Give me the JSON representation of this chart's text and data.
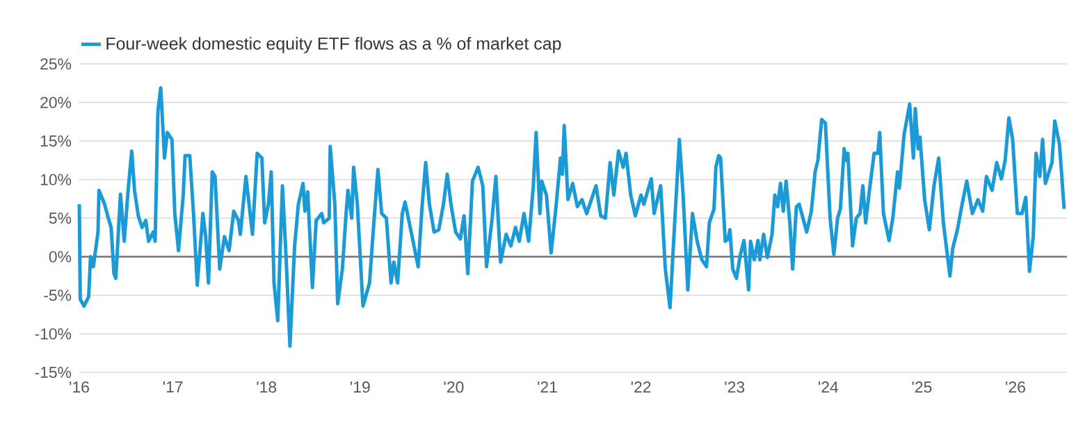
{
  "chart_data": {
    "type": "line",
    "x": [
      2016.0,
      2016.01,
      2016.05,
      2016.1,
      2016.12,
      2016.15,
      2016.2,
      2016.21,
      2016.27,
      2016.31,
      2016.34,
      2016.37,
      2016.39,
      2016.42,
      2016.44,
      2016.48,
      2016.52,
      2016.56,
      2016.59,
      2016.63,
      2016.67,
      2016.71,
      2016.74,
      2016.79,
      2016.81,
      2016.84,
      2016.87,
      2016.91,
      2016.94,
      2016.99,
      2017.02,
      2017.06,
      2017.11,
      2017.13,
      2017.18,
      2017.22,
      2017.26,
      2017.32,
      2017.35,
      2017.38,
      2017.42,
      2017.45,
      2017.5,
      2017.55,
      2017.6,
      2017.65,
      2017.7,
      2017.72,
      2017.78,
      2017.85,
      2017.9,
      2017.95,
      2017.98,
      2018.02,
      2018.05,
      2018.08,
      2018.12,
      2018.17,
      2018.21,
      2018.25,
      2018.3,
      2018.34,
      2018.39,
      2018.41,
      2018.44,
      2018.49,
      2018.53,
      2018.59,
      2018.61,
      2018.67,
      2018.68,
      2018.73,
      2018.76,
      2018.81,
      2018.85,
      2018.87,
      2018.91,
      2018.93,
      2018.97,
      2019.03,
      2019.1,
      2019.15,
      2019.19,
      2019.23,
      2019.28,
      2019.33,
      2019.36,
      2019.4,
      2019.45,
      2019.48,
      2019.52,
      2019.62,
      2019.66,
      2019.7,
      2019.74,
      2019.79,
      2019.84,
      2019.89,
      2019.93,
      2019.97,
      2020.02,
      2020.07,
      2020.11,
      2020.15,
      2020.2,
      2020.26,
      2020.31,
      2020.35,
      2020.41,
      2020.45,
      2020.5,
      2020.56,
      2020.61,
      2020.66,
      2020.7,
      2020.75,
      2020.8,
      2020.85,
      2020.88,
      2020.92,
      2020.94,
      2020.99,
      2021.04,
      2021.09,
      2021.14,
      2021.16,
      2021.18,
      2021.22,
      2021.27,
      2021.32,
      2021.37,
      2021.42,
      2021.47,
      2021.52,
      2021.57,
      2021.62,
      2021.67,
      2021.71,
      2021.76,
      2021.81,
      2021.84,
      2021.89,
      2021.94,
      2022.0,
      2022.03,
      2022.11,
      2022.14,
      2022.21,
      2022.26,
      2022.31,
      2022.36,
      2022.41,
      2022.45,
      2022.5,
      2022.55,
      2022.6,
      2022.65,
      2022.7,
      2022.73,
      2022.78,
      2022.8,
      2022.83,
      2022.85,
      2022.9,
      2022.93,
      2022.95,
      2022.98,
      2023.02,
      2023.06,
      2023.1,
      2023.15,
      2023.17,
      2023.21,
      2023.25,
      2023.27,
      2023.31,
      2023.35,
      2023.4,
      2023.43,
      2023.46,
      2023.49,
      2023.52,
      2023.55,
      2023.59,
      2023.62,
      2023.66,
      2023.69,
      2023.73,
      2023.77,
      2023.82,
      2023.86,
      2023.89,
      2023.93,
      2023.97,
      2024.02,
      2024.06,
      2024.1,
      2024.13,
      2024.17,
      2024.19,
      2024.21,
      2024.26,
      2024.3,
      2024.34,
      2024.37,
      2024.4,
      2024.44,
      2024.49,
      2024.53,
      2024.55,
      2024.59,
      2024.65,
      2024.69,
      2024.74,
      2024.76,
      2024.81,
      2024.87,
      2024.91,
      2024.93,
      2024.96,
      2024.98,
      2025.03,
      2025.08,
      2025.13,
      2025.18,
      2025.23,
      2025.3,
      2025.33,
      2025.38,
      2025.43,
      2025.48,
      2025.54,
      2025.6,
      2025.65,
      2025.69,
      2025.75,
      2025.8,
      2025.85,
      2025.89,
      2025.93,
      2025.97,
      2026.02,
      2026.07,
      2026.11,
      2026.15,
      2026.19,
      2026.22,
      2026.26,
      2026.29,
      2026.32,
      2026.39,
      2026.42,
      2026.47,
      2026.52
    ],
    "series": [
      {
        "name": "Four-week domestic equity ETF flows as a % of market cap",
        "color": "#1a9ad6",
        "values": [
          6.8,
          -5.5,
          -6.4,
          -5.2,
          0,
          -1.3,
          3.2,
          8.6,
          6.8,
          5,
          3.8,
          -2.2,
          -2.8,
          3.8,
          8.1,
          2,
          8.4,
          13.7,
          8.6,
          5.3,
          3.8,
          4.7,
          2,
          3.2,
          2,
          18.9,
          21.9,
          12.8,
          16.1,
          15.2,
          5.6,
          0.8,
          8,
          13.1,
          13.1,
          5.6,
          -3.7,
          5.6,
          2.6,
          -3.4,
          11,
          10.4,
          -1.6,
          2.6,
          0.8,
          5.9,
          4.7,
          2.9,
          10.4,
          2.9,
          13.4,
          12.8,
          4.4,
          6.8,
          11,
          -3.4,
          -8.3,
          9.2,
          -0.4,
          -11.6,
          1.4,
          6.8,
          9.5,
          5.9,
          8.4,
          -4,
          4.7,
          5.6,
          4.4,
          5,
          14.3,
          6.8,
          -6.1,
          -1.6,
          5.6,
          8.6,
          5,
          11.6,
          6.8,
          -6.4,
          -3.4,
          5,
          11.3,
          5.6,
          5,
          -3.4,
          -0.7,
          -3.4,
          5.6,
          7.1,
          4.7,
          -1.3,
          6.2,
          12.2,
          6.8,
          3.2,
          3.5,
          6.8,
          10.7,
          6.8,
          3.2,
          2.3,
          5.3,
          -2.2,
          9.8,
          11.6,
          9.2,
          -1.3,
          5,
          10.4,
          -0.7,
          2.9,
          1.4,
          3.8,
          2,
          5.6,
          2,
          9.2,
          16.1,
          5.6,
          9.8,
          8,
          0.5,
          6.2,
          12.8,
          10.7,
          17,
          7.4,
          9.5,
          6.5,
          7.4,
          5.6,
          7.4,
          9.2,
          5.3,
          5,
          12.2,
          8,
          13.7,
          11.6,
          13.4,
          8,
          5.3,
          8,
          6.8,
          10.1,
          5.6,
          9.2,
          -1.6,
          -6.6,
          4.4,
          15.2,
          8,
          -4.3,
          5.6,
          2,
          -0.4,
          -1.3,
          4.4,
          6.2,
          11.6,
          13.1,
          12.8,
          2,
          2.3,
          3.5,
          -1.6,
          -2.8,
          0.2,
          2.1,
          -4.3,
          2,
          -0.4,
          2.1,
          -0.4,
          2.9,
          -0.1,
          2.9,
          8,
          6.5,
          9.5,
          5.9,
          9.8,
          4.4,
          -1.6,
          6.5,
          6.8,
          5,
          3.2,
          5.9,
          11,
          12.5,
          17.8,
          17.3,
          5,
          0.3,
          5,
          6.2,
          14,
          12.5,
          13.4,
          1.4,
          5,
          5.6,
          9.2,
          4.4,
          8.6,
          13.4,
          13.4,
          16.1,
          5.6,
          2.1,
          5,
          11,
          8.9,
          15.8,
          19.8,
          12.8,
          19.2,
          14,
          15.5,
          7.4,
          3.5,
          9.2,
          12.8,
          4.4,
          -2.5,
          1.1,
          3.5,
          6.8,
          9.8,
          5.6,
          7.4,
          5.9,
          10.4,
          8.6,
          12.2,
          10.1,
          12.5,
          18,
          15.2,
          5.6,
          5.6,
          7.7,
          -1.9,
          2.6,
          13.4,
          10.4,
          15.2,
          9.5,
          12.2,
          17.6,
          14.6,
          6.2
        ]
      }
    ],
    "xlim": [
      2016,
      2026.55
    ],
    "xticks": [
      {
        "value": 2016,
        "label": "'16"
      },
      {
        "value": 2017,
        "label": "'17"
      },
      {
        "value": 2018,
        "label": "'18"
      },
      {
        "value": 2019,
        "label": "'19"
      },
      {
        "value": 2020,
        "label": "'20"
      },
      {
        "value": 2021,
        "label": "'21"
      },
      {
        "value": 2022,
        "label": "'22"
      },
      {
        "value": 2023,
        "label": "'23"
      },
      {
        "value": 2024,
        "label": "'24"
      },
      {
        "value": 2025,
        "label": "'25"
      },
      {
        "value": 2026,
        "label": "'26"
      }
    ],
    "ylim": [
      -15,
      25
    ],
    "yticks": [
      {
        "value": -15,
        "label": "-15%"
      },
      {
        "value": -10,
        "label": "-10%"
      },
      {
        "value": -5,
        "label": "-5%"
      },
      {
        "value": 0,
        "label": "0%"
      },
      {
        "value": 5,
        "label": "5%"
      },
      {
        "value": 10,
        "label": "10%"
      },
      {
        "value": 15,
        "label": "15%"
      },
      {
        "value": 20,
        "label": "20%"
      },
      {
        "value": 25,
        "label": "25%"
      }
    ],
    "grid": "y",
    "legend": "top left",
    "ref_lines": [
      {
        "axis": "y",
        "value": 0,
        "color": "#757575"
      }
    ]
  }
}
